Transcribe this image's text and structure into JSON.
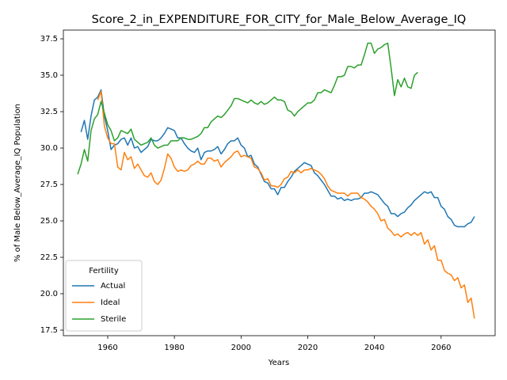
{
  "chart_data": {
    "type": "line",
    "title": "Score_2_in_EXPENDITURE_FOR_CITY_for_Male_Below_Average_IQ",
    "x_label": "Years",
    "y_label": "% of Male Below_Average_IQ Population",
    "legend_title": "Fertility",
    "legend": "lower left",
    "grid": false,
    "xlim": [
      1946.7,
      2076.2
    ],
    "ylim": [
      17.12,
      38.1
    ],
    "xticks": [
      1960,
      1980,
      2000,
      2020,
      2040,
      2060
    ],
    "yticks": [
      17.5,
      {
        "value": 20,
        "label": "20.0"
      },
      22.5,
      {
        "value": 25,
        "label": "25.0"
      },
      27.5,
      {
        "value": 30,
        "label": "30.0"
      },
      32.5,
      {
        "value": 35,
        "label": "35.0"
      },
      37.5
    ],
    "x": [
      1951,
      1952,
      1953,
      1954,
      1955,
      1956,
      1957,
      1958,
      1959,
      1960,
      1961,
      1962,
      1963,
      1964,
      1965,
      1966,
      1967,
      1968,
      1969,
      1970,
      1971,
      1972,
      1973,
      1974,
      1975,
      1976,
      1977,
      1978,
      1979,
      1980,
      1981,
      1982,
      1983,
      1984,
      1985,
      1986,
      1987,
      1988,
      1989,
      1990,
      1991,
      1992,
      1993,
      1994,
      1995,
      1996,
      1997,
      1998,
      1999,
      2000,
      2001,
      2002,
      2003,
      2004,
      2005,
      2006,
      2007,
      2008,
      2009,
      2010,
      2011,
      2012,
      2013,
      2014,
      2015,
      2016,
      2017,
      2018,
      2019,
      2020,
      2021,
      2022,
      2023,
      2024,
      2025,
      2026,
      2027,
      2028,
      2029,
      2030,
      2031,
      2032,
      2033,
      2034,
      2035,
      2036,
      2037,
      2038,
      2039,
      2040,
      2041,
      2042,
      2043,
      2044,
      2045,
      2046,
      2047,
      2048,
      2049,
      2050,
      2051,
      2052,
      2053,
      2054,
      2055,
      2056,
      2057,
      2058,
      2059,
      2060,
      2061,
      2062,
      2063,
      2064,
      2065,
      2066,
      2067,
      2068,
      2069,
      2070
    ],
    "series": [
      {
        "name": "Actual",
        "color": "#1f77b4",
        "values": [
          null,
          31.1,
          31.9,
          30.6,
          32.2,
          33.3,
          33.5,
          34.0,
          32.2,
          31.2,
          29.9,
          30.2,
          30.3,
          30.6,
          30.7,
          30.2,
          30.7,
          30.0,
          30.1,
          29.7,
          29.9,
          30.1,
          30.6,
          30.5,
          30.5,
          30.7,
          31.0,
          31.4,
          31.3,
          31.2,
          30.7,
          30.7,
          30.3,
          30.0,
          29.8,
          29.7,
          30.0,
          29.2,
          29.7,
          29.8,
          29.8,
          29.9,
          30.1,
          29.6,
          29.9,
          30.3,
          30.5,
          30.5,
          30.7,
          30.2,
          30.0,
          29.4,
          29.5,
          28.9,
          28.7,
          28.2,
          27.7,
          27.6,
          27.2,
          27.2,
          26.8,
          27.3,
          27.3,
          27.7,
          28.0,
          28.4,
          28.6,
          28.8,
          29.0,
          28.9,
          28.8,
          28.3,
          28.1,
          27.8,
          27.5,
          27.1,
          26.7,
          26.7,
          26.5,
          26.6,
          26.4,
          26.5,
          26.4,
          26.5,
          26.5,
          26.6,
          26.9,
          26.9,
          27.0,
          26.9,
          26.8,
          26.5,
          26.2,
          26.0,
          25.5,
          25.5,
          25.3,
          25.5,
          25.6,
          25.9,
          26.1,
          26.4,
          26.6,
          26.8,
          27.0,
          26.9,
          27.0,
          26.6,
          26.6,
          26.0,
          25.8,
          25.3,
          25.1,
          24.7,
          24.6,
          24.6,
          24.6,
          24.8,
          24.9,
          25.3
        ]
      },
      {
        "name": "Ideal",
        "color": "#ff7f0e",
        "values": [
          null,
          null,
          null,
          null,
          null,
          null,
          33.3,
          33.9,
          31.5,
          30.7,
          30.3,
          30.3,
          28.7,
          28.5,
          29.7,
          29.2,
          29.4,
          28.6,
          28.9,
          28.5,
          28.1,
          28.0,
          28.3,
          27.7,
          27.5,
          27.8,
          28.6,
          29.6,
          29.3,
          28.7,
          28.4,
          28.5,
          28.4,
          28.5,
          28.8,
          28.9,
          29.1,
          28.9,
          28.9,
          29.3,
          29.3,
          29.1,
          29.2,
          28.7,
          29.0,
          29.2,
          29.4,
          29.7,
          29.8,
          29.4,
          29.5,
          29.4,
          29.3,
          28.7,
          28.6,
          28.3,
          27.8,
          27.9,
          27.4,
          27.4,
          27.3,
          27.5,
          27.9,
          28.0,
          28.4,
          28.3,
          28.5,
          28.3,
          28.5,
          28.5,
          28.6,
          28.5,
          28.4,
          28.2,
          27.9,
          27.4,
          27.1,
          27.0,
          26.9,
          26.9,
          26.9,
          26.7,
          26.9,
          26.9,
          26.9,
          26.6,
          26.5,
          26.3,
          26.0,
          25.8,
          25.5,
          25.0,
          25.1,
          24.5,
          24.3,
          24.0,
          24.1,
          23.9,
          24.1,
          24.2,
          24.0,
          24.2,
          24.0,
          24.2,
          23.4,
          23.7,
          23.0,
          23.3,
          22.3,
          22.3,
          21.6,
          21.4,
          21.3,
          20.9,
          21.1,
          20.4,
          20.6,
          19.4,
          19.7,
          18.3
        ]
      },
      {
        "name": "Sterile",
        "color": "#2ca02c",
        "values": [
          28.2,
          28.9,
          29.9,
          29.1,
          31.2,
          32.0,
          32.3,
          33.2,
          32.4,
          31.6,
          31.2,
          30.5,
          30.7,
          31.2,
          31.1,
          31.0,
          31.3,
          30.6,
          30.4,
          30.2,
          30.3,
          30.4,
          30.7,
          30.2,
          30.0,
          30.1,
          30.2,
          30.2,
          30.5,
          30.5,
          30.5,
          30.7,
          30.7,
          30.6,
          30.6,
          30.7,
          30.8,
          31.0,
          31.4,
          31.4,
          31.8,
          32.0,
          32.2,
          32.1,
          32.3,
          32.6,
          32.9,
          33.4,
          33.4,
          33.3,
          33.2,
          33.1,
          33.3,
          33.1,
          33.0,
          33.2,
          33.0,
          33.1,
          33.3,
          33.5,
          33.3,
          33.3,
          33.2,
          32.6,
          32.5,
          32.2,
          32.5,
          32.7,
          32.9,
          33.1,
          33.1,
          33.3,
          33.8,
          33.8,
          34.0,
          33.9,
          33.8,
          34.3,
          34.9,
          34.9,
          35.0,
          35.6,
          35.6,
          35.5,
          35.7,
          35.7,
          36.4,
          37.2,
          37.2,
          36.5,
          36.8,
          36.9,
          37.1,
          37.2,
          35.5,
          33.6,
          34.7,
          34.2,
          34.8,
          34.2,
          34.1,
          35.0,
          35.2,
          null,
          null,
          null,
          null,
          null,
          null,
          null,
          null,
          null,
          null,
          null,
          null,
          null,
          null,
          null,
          null,
          null
        ]
      }
    ]
  }
}
